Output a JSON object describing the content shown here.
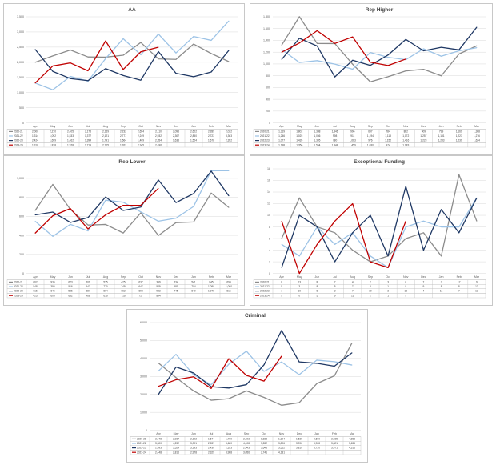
{
  "months": [
    "Apr",
    "May",
    "Jun",
    "Jul",
    "Aug",
    "Sep",
    "Oct",
    "Nov",
    "Dec",
    "Jan",
    "Feb",
    "Mar"
  ],
  "series_names": [
    "2020-21",
    "2021-22",
    "2022-23",
    "2023-24"
  ],
  "colors": {
    "2020-21": "#8c8c8c",
    "2021-22": "#9dc3e6",
    "2022-23": "#1f3864",
    "2023-24": "#c00000"
  },
  "chart_data": [
    {
      "type": "line",
      "title": "AA",
      "categories": [
        "Apr",
        "May",
        "Jun",
        "Jul",
        "Aug",
        "Sep",
        "Oct",
        "Nov",
        "Dec",
        "Jan",
        "Feb",
        "Mar"
      ],
      "ylim": [
        0,
        3500
      ],
      "yticks": [
        "0",
        "500",
        "1,000",
        "1,500",
        "2,000",
        "2,500",
        "3,000",
        "3,500"
      ],
      "ytick_values": [
        0,
        500,
        1000,
        1500,
        2000,
        2500,
        3000,
        3500
      ],
      "series": [
        {
          "name": "2020-21",
          "values": [
            2000,
            2210,
            2405,
            2175,
            2169,
            2232,
            2654,
            2110,
            2095,
            2602,
            2289,
            2022
          ],
          "labels": [
            "2,000",
            "2,210",
            "2,405",
            "2,175",
            "2,169",
            "2,232",
            "2,654",
            "2,110",
            "2,095",
            "2,602",
            "2,289",
            "2,022"
          ]
        },
        {
          "name": "2021-22",
          "values": [
            1314,
            1092,
            1533,
            1377,
            2121,
            2777,
            2249,
            2932,
            2307,
            2850,
            2723,
            3363
          ],
          "labels": [
            "1,314",
            "1,092",
            "1,533",
            "1,377",
            "2,121",
            "2,777",
            "2,249",
            "2,932",
            "2,307",
            "2,850",
            "2,723",
            "3,363"
          ]
        },
        {
          "name": "2022-23",
          "values": [
            2424,
            1699,
            1462,
            1394,
            1791,
            1564,
            1409,
            2354,
            1635,
            1524,
            1678,
            2392
          ],
          "labels": [
            "2,424",
            "1,699",
            "1,462",
            "1,394",
            "1,791",
            "1,564",
            "1,409",
            "2,354",
            "1,635",
            "1,524",
            "1,678",
            "2,392"
          ]
        },
        {
          "name": "2023-24",
          "values": [
            1316,
            1878,
            1978,
            1719,
            2705,
            1762,
            2345,
            2496,
            null,
            null,
            null,
            null
          ],
          "labels": [
            "1,316",
            "1,878",
            "1,978",
            "1,719",
            "2,705",
            "1,762",
            "2,345",
            "2,496",
            "",
            "",
            "",
            ""
          ]
        }
      ]
    },
    {
      "type": "line",
      "title": "Rep Higher",
      "categories": [
        "Apr",
        "May",
        "Jun",
        "Jul",
        "Aug",
        "Sep",
        "Oct",
        "Nov",
        "Dec",
        "Jan",
        "Feb",
        "Mar"
      ],
      "ylim": [
        0,
        1800
      ],
      "yticks": [
        "0",
        "200",
        "400",
        "600",
        "800",
        "1,000",
        "1,200",
        "1,400",
        "1,600",
        "1,800"
      ],
      "ytick_values": [
        0,
        200,
        400,
        600,
        800,
        1000,
        1200,
        1400,
        1600,
        1800
      ],
      "series": [
        {
          "name": "2020-21",
          "values": [
            1319,
            1802,
            1348,
            1346,
            996,
            697,
            784,
            882,
            909,
            799,
            1169,
            1308
          ],
          "labels": [
            "1,319",
            "1,802",
            "1,348",
            "1,346",
            "996",
            "697",
            "784",
            "882",
            "909",
            "799",
            "1,169",
            "1,308"
          ]
        },
        {
          "name": "2021-22",
          "values": [
            1246,
            1025,
            1056,
            998,
            911,
            1194,
            1113,
            1072,
            1257,
            1131,
            1223,
            1276
          ],
          "labels": [
            "1,246",
            "1,025",
            "1,056",
            "998",
            "911",
            "1,194",
            "1,113",
            "1,072",
            "1,257",
            "1,131",
            "1,223",
            "1,276"
          ]
        },
        {
          "name": "2022-23",
          "values": [
            1077,
            1435,
            1305,
            780,
            1063,
            976,
            1152,
            1416,
            1223,
            1283,
            1239,
            1624
          ],
          "labels": [
            "1,077",
            "1,435",
            "1,305",
            "780",
            "1,063",
            "976",
            "1,152",
            "1,416",
            "1,223",
            "1,283",
            "1,239",
            "1,624"
          ]
        },
        {
          "name": "2023-24",
          "values": [
            1198,
            1356,
            1564,
            1348,
            1459,
            1030,
            974,
            1083,
            null,
            null,
            null,
            null
          ],
          "labels": [
            "1,198",
            "1,356",
            "1,564",
            "1,348",
            "1,459",
            "1,030",
            "974",
            "1,083",
            "",
            "",
            "",
            ""
          ]
        }
      ]
    },
    {
      "type": "line",
      "title": "Rep Lower",
      "categories": [
        "Apr",
        "May",
        "Jun",
        "Jul",
        "Aug",
        "Sep",
        "Oct",
        "Nov",
        "Dec",
        "Jan",
        "Feb",
        "Mar"
      ],
      "ylim": [
        0,
        1100
      ],
      "yticks": [
        "0",
        "200",
        "400",
        "600",
        "800",
        "1,000"
      ],
      "ytick_values": [
        0,
        200,
        400,
        600,
        800,
        1000
      ],
      "series": [
        {
          "name": "2020-21",
          "values": [
            662,
            936,
            673,
            509,
            515,
            425,
            637,
            399,
            534,
            541,
            845,
            694
          ],
          "labels": [
            "662",
            "936",
            "673",
            "509",
            "515",
            "425",
            "637",
            "399",
            "534",
            "541",
            "845",
            "694"
          ]
        },
        {
          "name": "2021-22",
          "values": [
            548,
            390,
            516,
            447,
            770,
            749,
            647,
            549,
            581,
            704,
            1080,
            1080
          ],
          "labels": [
            "548",
            "390",
            "516",
            "447",
            "770",
            "749",
            "647",
            "549",
            "581",
            "704",
            "1,080",
            "1,080"
          ]
        },
        {
          "name": "2022-23",
          "values": [
            616,
            645,
            536,
            587,
            804,
            662,
            698,
            983,
            745,
            840,
            1076,
            816
          ],
          "labels": [
            "616",
            "645",
            "536",
            "587",
            "804",
            "662",
            "698",
            "983",
            "745",
            "840",
            "1,076",
            "816"
          ]
        },
        {
          "name": "2023-24",
          "values": [
            423,
            606,
            682,
            468,
            616,
            716,
            717,
            894,
            null,
            null,
            null,
            null
          ],
          "labels": [
            "423",
            "606",
            "682",
            "468",
            "616",
            "716",
            "717",
            "894",
            "",
            "",
            "",
            ""
          ]
        }
      ]
    },
    {
      "type": "line",
      "title": "Exceptional Funding",
      "categories": [
        "Apr",
        "May",
        "Jun",
        "Jul",
        "Aug",
        "Sep",
        "Oct",
        "Nov",
        "Dec",
        "Jan",
        "Feb",
        "Mar"
      ],
      "ylim": [
        0,
        18
      ],
      "yticks": [
        "0",
        "2",
        "4",
        "6",
        "8",
        "10",
        "12",
        "14",
        "16",
        "18"
      ],
      "ytick_values": [
        0,
        2,
        4,
        6,
        8,
        10,
        12,
        14,
        16,
        18
      ],
      "series": [
        {
          "name": "2020-21",
          "values": [
            6,
            13,
            8,
            7,
            4,
            2,
            3,
            6,
            7,
            3,
            17,
            9
          ],
          "labels": [
            "6",
            "13",
            "8",
            "7",
            "4",
            "2",
            "3",
            "6",
            "7",
            "3",
            "17",
            "9"
          ]
        },
        {
          "name": "2021-22",
          "values": [
            5,
            3,
            8,
            5,
            7,
            3,
            1,
            8,
            9,
            8,
            8,
            13
          ],
          "labels": [
            "5",
            "3",
            "8",
            "5",
            "7",
            "3",
            "1",
            "8",
            "9",
            "8",
            "8",
            "13"
          ]
        },
        {
          "name": "2022-23",
          "values": [
            1,
            10,
            8,
            2,
            7,
            10,
            3,
            15,
            4,
            11,
            7,
            13
          ],
          "labels": [
            "1",
            "10",
            "8",
            "2",
            "7",
            "10",
            "3",
            "15",
            "4",
            "11",
            "7",
            "13"
          ]
        },
        {
          "name": "2023-24",
          "values": [
            9,
            0,
            5,
            9,
            12,
            2,
            1,
            9,
            null,
            null,
            null,
            null
          ],
          "labels": [
            "9",
            "0",
            "5",
            "9",
            "12",
            "2",
            "1",
            "9",
            "",
            "",
            "",
            ""
          ]
        }
      ]
    },
    {
      "type": "line",
      "title": "Criminal",
      "categories": [
        "Apr",
        "May",
        "Jun",
        "Jul",
        "Aug",
        "Sep",
        "Oct",
        "Nov",
        "Dec",
        "Jan",
        "Feb",
        "Mar"
      ],
      "ylim": [
        0,
        6000
      ],
      "yticks": [
        "0",
        "1,000",
        "2,000",
        "3,000",
        "4,000",
        "5,000",
        "6,000"
      ],
      "ytick_values": [
        0,
        1000,
        2000,
        3000,
        4000,
        5000,
        6000
      ],
      "series": [
        {
          "name": "2020-21",
          "values": [
            3748,
            2937,
            2192,
            1674,
            1760,
            2193,
            1833,
            1394,
            1539,
            2600,
            3035,
            4865
          ],
          "labels": [
            "3,748",
            "2,937",
            "2,192",
            "1,674",
            "1,760",
            "2,193",
            "1,833",
            "1,394",
            "1,539",
            "2,600",
            "3,035",
            "4,865"
          ]
        },
        {
          "name": "2021-22",
          "values": [
            3300,
            4232,
            3091,
            2537,
            3680,
            4408,
            3282,
            3806,
            3096,
            3908,
            3821,
            3635
          ],
          "labels": [
            "3,300",
            "4,232",
            "3,091",
            "2,537",
            "3,680",
            "4,408",
            "3,282",
            "3,806",
            "3,096",
            "3,908",
            "3,821",
            "3,635"
          ]
        },
        {
          "name": "2022-23",
          "values": [
            1993,
            3524,
            3193,
            2430,
            2353,
            2543,
            3645,
            5562,
            3810,
            3730,
            3571,
            4316
          ],
          "labels": [
            "1,993",
            "3,524",
            "3,193",
            "2,430",
            "2,353",
            "2,543",
            "3,645",
            "5,562",
            "3,810",
            "3,730",
            "3,571",
            "4,316"
          ]
        },
        {
          "name": "2023-24",
          "values": [
            2448,
            2816,
            2978,
            2329,
            3988,
            3056,
            2741,
            4131,
            null,
            null,
            null,
            null
          ],
          "labels": [
            "2,448",
            "2,816",
            "2,978",
            "2,329",
            "3,988",
            "3,056",
            "2,741",
            "4,131",
            "",
            "",
            "",
            ""
          ]
        }
      ]
    }
  ]
}
